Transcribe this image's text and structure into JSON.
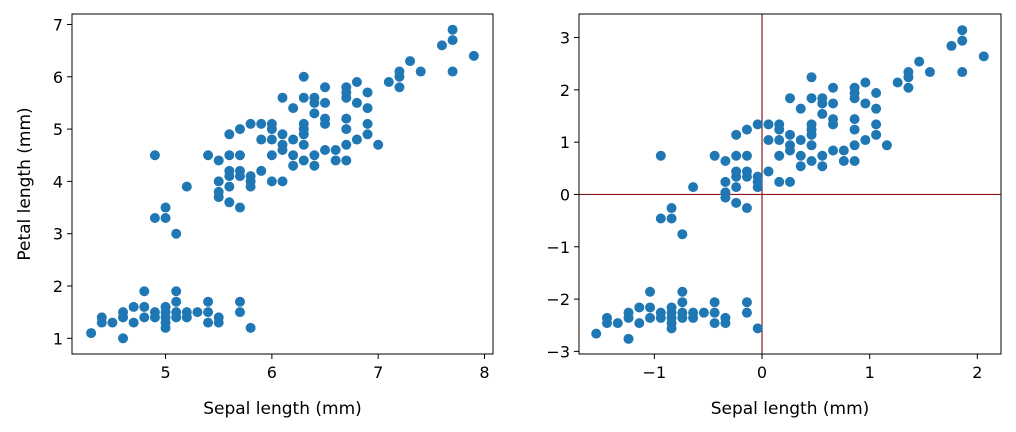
{
  "chart_data": [
    {
      "type": "scatter",
      "title": "",
      "xlabel": "Sepal length (mm)",
      "ylabel": "Petal length (mm)",
      "xlim": [
        4.12,
        8.08
      ],
      "ylim": [
        0.7,
        7.2
      ],
      "xticks": [
        5,
        6,
        7,
        8
      ],
      "yticks": [
        1,
        2,
        3,
        4,
        5,
        6,
        7
      ],
      "grid": false,
      "marker_color": "#1f77b4",
      "points": [
        [
          4.3,
          1.1
        ],
        [
          4.4,
          1.3
        ],
        [
          4.4,
          1.4
        ],
        [
          4.5,
          1.3
        ],
        [
          4.6,
          1.0
        ],
        [
          4.6,
          1.4
        ],
        [
          4.6,
          1.5
        ],
        [
          4.7,
          1.3
        ],
        [
          4.7,
          1.6
        ],
        [
          4.8,
          1.4
        ],
        [
          4.8,
          1.6
        ],
        [
          4.8,
          1.9
        ],
        [
          4.9,
          1.4
        ],
        [
          4.9,
          1.5
        ],
        [
          5.0,
          1.2
        ],
        [
          5.0,
          1.3
        ],
        [
          5.0,
          1.4
        ],
        [
          5.0,
          1.5
        ],
        [
          5.0,
          1.6
        ],
        [
          5.1,
          1.4
        ],
        [
          5.1,
          1.5
        ],
        [
          5.1,
          1.7
        ],
        [
          5.1,
          1.9
        ],
        [
          5.2,
          1.4
        ],
        [
          5.2,
          1.5
        ],
        [
          5.3,
          1.5
        ],
        [
          5.4,
          1.3
        ],
        [
          5.4,
          1.5
        ],
        [
          5.4,
          1.7
        ],
        [
          5.5,
          1.3
        ],
        [
          5.5,
          1.4
        ],
        [
          5.7,
          1.5
        ],
        [
          5.7,
          1.7
        ],
        [
          5.8,
          1.2
        ],
        [
          4.9,
          3.3
        ],
        [
          4.9,
          4.5
        ],
        [
          5.0,
          3.3
        ],
        [
          5.0,
          3.5
        ],
        [
          5.1,
          3.0
        ],
        [
          5.2,
          3.9
        ],
        [
          5.4,
          4.5
        ],
        [
          5.5,
          3.7
        ],
        [
          5.5,
          3.8
        ],
        [
          5.5,
          4.0
        ],
        [
          5.5,
          4.4
        ],
        [
          5.6,
          3.6
        ],
        [
          5.6,
          3.9
        ],
        [
          5.6,
          4.1
        ],
        [
          5.6,
          4.2
        ],
        [
          5.6,
          4.5
        ],
        [
          5.6,
          4.9
        ],
        [
          5.7,
          3.5
        ],
        [
          5.7,
          4.1
        ],
        [
          5.7,
          4.2
        ],
        [
          5.7,
          4.5
        ],
        [
          5.7,
          5.0
        ],
        [
          5.8,
          3.9
        ],
        [
          5.8,
          4.0
        ],
        [
          5.8,
          4.1
        ],
        [
          5.8,
          5.1
        ],
        [
          5.9,
          4.2
        ],
        [
          5.9,
          4.8
        ],
        [
          5.9,
          5.1
        ],
        [
          6.0,
          4.0
        ],
        [
          6.0,
          4.5
        ],
        [
          6.0,
          4.8
        ],
        [
          6.0,
          5.0
        ],
        [
          6.0,
          5.1
        ],
        [
          6.1,
          4.0
        ],
        [
          6.1,
          4.6
        ],
        [
          6.1,
          4.7
        ],
        [
          6.1,
          4.9
        ],
        [
          6.1,
          5.6
        ],
        [
          6.2,
          4.3
        ],
        [
          6.2,
          4.5
        ],
        [
          6.2,
          4.8
        ],
        [
          6.2,
          5.4
        ],
        [
          6.3,
          4.4
        ],
        [
          6.3,
          4.7
        ],
        [
          6.3,
          4.9
        ],
        [
          6.3,
          5.0
        ],
        [
          6.3,
          5.1
        ],
        [
          6.3,
          5.6
        ],
        [
          6.3,
          6.0
        ],
        [
          6.4,
          4.3
        ],
        [
          6.4,
          4.5
        ],
        [
          6.4,
          5.3
        ],
        [
          6.4,
          5.5
        ],
        [
          6.4,
          5.6
        ],
        [
          6.5,
          4.6
        ],
        [
          6.5,
          5.1
        ],
        [
          6.5,
          5.2
        ],
        [
          6.5,
          5.5
        ],
        [
          6.5,
          5.8
        ],
        [
          6.6,
          4.4
        ],
        [
          6.6,
          4.6
        ],
        [
          6.7,
          4.4
        ],
        [
          6.7,
          4.7
        ],
        [
          6.7,
          5.0
        ],
        [
          6.7,
          5.2
        ],
        [
          6.7,
          5.6
        ],
        [
          6.7,
          5.7
        ],
        [
          6.7,
          5.8
        ],
        [
          6.8,
          4.8
        ],
        [
          6.8,
          5.5
        ],
        [
          6.8,
          5.9
        ],
        [
          6.9,
          4.9
        ],
        [
          6.9,
          5.1
        ],
        [
          6.9,
          5.4
        ],
        [
          6.9,
          5.7
        ],
        [
          7.0,
          4.7
        ],
        [
          7.1,
          5.9
        ],
        [
          7.2,
          5.8
        ],
        [
          7.2,
          6.0
        ],
        [
          7.2,
          6.1
        ],
        [
          7.3,
          6.3
        ],
        [
          7.4,
          6.1
        ],
        [
          7.6,
          6.6
        ],
        [
          7.7,
          6.1
        ],
        [
          7.7,
          6.7
        ],
        [
          7.7,
          6.9
        ],
        [
          7.9,
          6.4
        ]
      ]
    },
    {
      "type": "scatter",
      "title": "",
      "xlabel": "Sepal length (mm)",
      "ylabel": "",
      "xlim": [
        -1.7,
        2.22
      ],
      "ylim": [
        -3.05,
        3.45
      ],
      "xticks": [
        -1,
        0,
        1,
        2
      ],
      "yticks": [
        -3,
        -2,
        -1,
        0,
        1,
        2,
        3
      ],
      "grid": false,
      "marker_color": "#1f77b4",
      "reference_lines": {
        "x": 0,
        "y": 0,
        "color": "#8b1a1a"
      },
      "points": [
        [
          -1.54,
          -2.66
        ],
        [
          -1.44,
          -2.46
        ],
        [
          -1.44,
          -2.36
        ],
        [
          -1.34,
          -2.46
        ],
        [
          -1.24,
          -2.76
        ],
        [
          -1.24,
          -2.36
        ],
        [
          -1.24,
          -2.26
        ],
        [
          -1.14,
          -2.46
        ],
        [
          -1.14,
          -2.16
        ],
        [
          -1.04,
          -2.36
        ],
        [
          -1.04,
          -2.16
        ],
        [
          -1.04,
          -1.86
        ],
        [
          -0.94,
          -2.36
        ],
        [
          -0.94,
          -2.26
        ],
        [
          -0.84,
          -2.56
        ],
        [
          -0.84,
          -2.46
        ],
        [
          -0.84,
          -2.36
        ],
        [
          -0.84,
          -2.26
        ],
        [
          -0.84,
          -2.16
        ],
        [
          -0.74,
          -2.36
        ],
        [
          -0.74,
          -2.26
        ],
        [
          -0.74,
          -2.06
        ],
        [
          -0.74,
          -1.86
        ],
        [
          -0.64,
          -2.36
        ],
        [
          -0.64,
          -2.26
        ],
        [
          -0.54,
          -2.26
        ],
        [
          -0.44,
          -2.46
        ],
        [
          -0.44,
          -2.26
        ],
        [
          -0.44,
          -2.06
        ],
        [
          -0.34,
          -2.46
        ],
        [
          -0.34,
          -2.36
        ],
        [
          -0.14,
          -2.26
        ],
        [
          -0.14,
          -2.06
        ],
        [
          -0.04,
          -2.56
        ],
        [
          -0.94,
          -0.46
        ],
        [
          -0.94,
          0.74
        ],
        [
          -0.84,
          -0.46
        ],
        [
          -0.84,
          -0.26
        ],
        [
          -0.74,
          -0.76
        ],
        [
          -0.64,
          0.14
        ],
        [
          -0.44,
          0.74
        ],
        [
          -0.34,
          -0.06
        ],
        [
          -0.34,
          0.04
        ],
        [
          -0.34,
          0.24
        ],
        [
          -0.34,
          0.64
        ],
        [
          -0.24,
          -0.16
        ],
        [
          -0.24,
          0.14
        ],
        [
          -0.24,
          0.34
        ],
        [
          -0.24,
          0.44
        ],
        [
          -0.24,
          0.74
        ],
        [
          -0.24,
          1.14
        ],
        [
          -0.14,
          -0.26
        ],
        [
          -0.14,
          0.34
        ],
        [
          -0.14,
          0.44
        ],
        [
          -0.14,
          0.74
        ],
        [
          -0.14,
          1.24
        ],
        [
          -0.04,
          0.14
        ],
        [
          -0.04,
          0.24
        ],
        [
          -0.04,
          0.34
        ],
        [
          -0.04,
          1.34
        ],
        [
          0.06,
          0.44
        ],
        [
          0.06,
          1.04
        ],
        [
          0.06,
          1.34
        ],
        [
          0.16,
          0.24
        ],
        [
          0.16,
          0.74
        ],
        [
          0.16,
          1.04
        ],
        [
          0.16,
          1.24
        ],
        [
          0.16,
          1.34
        ],
        [
          0.26,
          0.24
        ],
        [
          0.26,
          0.84
        ],
        [
          0.26,
          0.94
        ],
        [
          0.26,
          1.14
        ],
        [
          0.26,
          1.84
        ],
        [
          0.36,
          0.54
        ],
        [
          0.36,
          0.74
        ],
        [
          0.36,
          1.04
        ],
        [
          0.36,
          1.64
        ],
        [
          0.46,
          0.64
        ],
        [
          0.46,
          0.94
        ],
        [
          0.46,
          1.14
        ],
        [
          0.46,
          1.24
        ],
        [
          0.46,
          1.34
        ],
        [
          0.46,
          1.84
        ],
        [
          0.46,
          2.24
        ],
        [
          0.56,
          0.54
        ],
        [
          0.56,
          0.74
        ],
        [
          0.56,
          1.54
        ],
        [
          0.56,
          1.74
        ],
        [
          0.56,
          1.84
        ],
        [
          0.66,
          0.84
        ],
        [
          0.66,
          1.34
        ],
        [
          0.66,
          1.44
        ],
        [
          0.66,
          1.74
        ],
        [
          0.66,
          2.04
        ],
        [
          0.76,
          0.64
        ],
        [
          0.76,
          0.84
        ],
        [
          0.86,
          0.64
        ],
        [
          0.86,
          0.94
        ],
        [
          0.86,
          1.24
        ],
        [
          0.86,
          1.44
        ],
        [
          0.86,
          1.84
        ],
        [
          0.86,
          1.94
        ],
        [
          0.86,
          2.04
        ],
        [
          0.96,
          1.04
        ],
        [
          0.96,
          1.74
        ],
        [
          0.96,
          2.14
        ],
        [
          1.06,
          1.14
        ],
        [
          1.06,
          1.34
        ],
        [
          1.06,
          1.64
        ],
        [
          1.06,
          1.94
        ],
        [
          1.16,
          0.94
        ],
        [
          1.26,
          2.14
        ],
        [
          1.36,
          2.04
        ],
        [
          1.36,
          2.24
        ],
        [
          1.36,
          2.34
        ],
        [
          1.46,
          2.54
        ],
        [
          1.56,
          2.34
        ],
        [
          1.76,
          2.84
        ],
        [
          1.86,
          2.34
        ],
        [
          1.86,
          2.94
        ],
        [
          1.86,
          3.14
        ],
        [
          2.06,
          2.64
        ]
      ]
    }
  ]
}
